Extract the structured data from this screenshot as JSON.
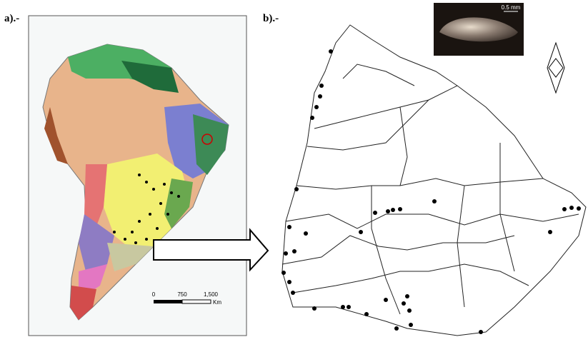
{
  "panels": {
    "a": {
      "label": "a).-",
      "scale": {
        "ticks": [
          "0",
          "750",
          "1,500"
        ],
        "unit": "Km"
      }
    },
    "b": {
      "label": "b).-",
      "inset_scale": "0.5 mm"
    }
  }
}
